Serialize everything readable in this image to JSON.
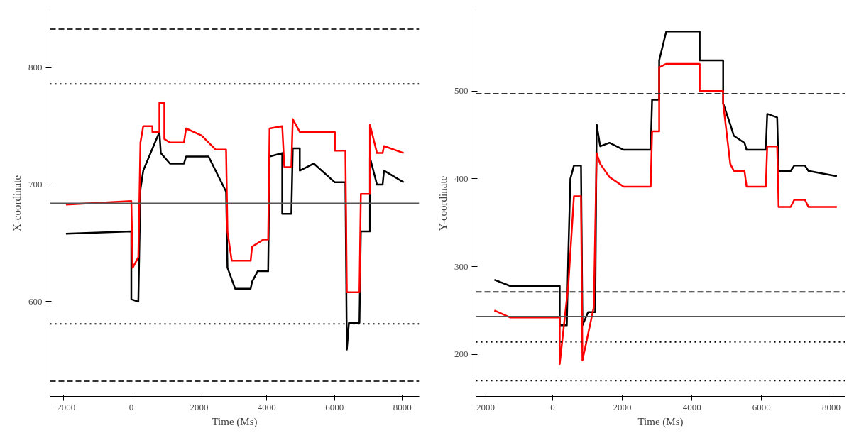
{
  "chart_data": [
    {
      "type": "line",
      "xlabel": "Time (Ms)",
      "ylabel": "X-coordinate",
      "xlim": [
        -2400,
        8500
      ],
      "ylim": [
        519,
        849
      ],
      "xticks": [
        -2000,
        0,
        2000,
        4000,
        6000,
        8000
      ],
      "yticks": [
        600,
        700,
        800
      ],
      "grid": false,
      "line_style": "solid",
      "series": [
        {
          "color": "#000000",
          "x": [
            -1930,
            0,
            0,
            207,
            269,
            352,
            829,
            870,
            1140,
            1554,
            1617,
            2280,
            2798,
            2839,
            3067,
            3523,
            3565,
            3731,
            4041,
            4083,
            4456,
            4456,
            4725,
            4767,
            4974,
            4974,
            5389,
            6010,
            6321,
            6363,
            6425,
            6736,
            6777,
            7047,
            7047,
            7254,
            7420,
            7461,
            8041
          ],
          "values": [
            658,
            660,
            602,
            600,
            696,
            712,
            745,
            727,
            718,
            718,
            724,
            724,
            694,
            629,
            611,
            611,
            617,
            626,
            626,
            724,
            727,
            675,
            675,
            731,
            731,
            712,
            718,
            702,
            702,
            559,
            582,
            582,
            660,
            660,
            723,
            700,
            700,
            712,
            702
          ]
        },
        {
          "color": "#ff0000",
          "x": [
            -1930,
            0,
            41,
            207,
            269,
            352,
            622,
            622,
            829,
            829,
            974,
            974,
            1140,
            1554,
            1617,
            2073,
            2487,
            2798,
            2839,
            2964,
            3523,
            3565,
            3896,
            4041,
            4083,
            4456,
            4518,
            4725,
            4767,
            4974,
            6010,
            6010,
            6321,
            6363,
            6736,
            6777,
            7047,
            7047,
            7254,
            7420,
            7461,
            8041
          ],
          "values": [
            683,
            686,
            629,
            638,
            736,
            750,
            750,
            745,
            745,
            770,
            770,
            739,
            736,
            736,
            748,
            742,
            730,
            730,
            660,
            635,
            635,
            647,
            653,
            653,
            748,
            750,
            715,
            715,
            756,
            745,
            745,
            729,
            729,
            608,
            608,
            692,
            692,
            751,
            727,
            727,
            733,
            727
          ]
        }
      ],
      "ref_lines": [
        {
          "axis": "y",
          "value": 833,
          "color": "#333333",
          "line_style": "dashed"
        },
        {
          "axis": "y",
          "value": 786,
          "color": "#000000",
          "line_style": "dotted"
        },
        {
          "axis": "y",
          "value": 684,
          "color": "#555555",
          "line_style": "solid"
        },
        {
          "axis": "y",
          "value": 581,
          "color": "#000000",
          "line_style": "dotted"
        },
        {
          "axis": "y",
          "value": 532,
          "color": "#333333",
          "line_style": "dashed"
        }
      ]
    },
    {
      "type": "line",
      "xlabel": "Time (Ms)",
      "ylabel": "Y-coordinate",
      "xlim": [
        -2200,
        8400
      ],
      "ylim": [
        152,
        592
      ],
      "xticks": [
        -2000,
        0,
        2000,
        4000,
        6000,
        8000
      ],
      "yticks": [
        200,
        300,
        400,
        500
      ],
      "grid": false,
      "line_style": "solid",
      "series": [
        {
          "color": "#000000",
          "x": [
            -1673,
            -1224,
            204,
            204,
            408,
            449,
            510,
            612,
            816,
            857,
            1020,
            1224,
            1265,
            1367,
            1633,
            2041,
            2816,
            2857,
            3061,
            3061,
            3265,
            4224,
            4224,
            4898,
            4898,
            5102,
            5204,
            5510,
            5571,
            6122,
            6163,
            6449,
            6490,
            6837,
            6939,
            7245,
            7347,
            8163
          ],
          "values": [
            285,
            278,
            278,
            233,
            233,
            311,
            400,
            415,
            415,
            233,
            248,
            248,
            462,
            437,
            441,
            433,
            433,
            490,
            490,
            535,
            568,
            568,
            535,
            535,
            486,
            462,
            449,
            441,
            433,
            433,
            474,
            470,
            409,
            409,
            415,
            415,
            409,
            403
          ]
        },
        {
          "color": "#ff0000",
          "x": [
            -1673,
            -1224,
            204,
            204,
            449,
            612,
            816,
            857,
            1184,
            1265,
            1367,
            1633,
            2041,
            2816,
            2857,
            3061,
            3061,
            3265,
            4224,
            4224,
            4898,
            4898,
            5102,
            5204,
            5510,
            5571,
            6122,
            6163,
            6449,
            6490,
            6837,
            6939,
            7245,
            7347,
            8163
          ],
          "values": [
            250,
            242,
            242,
            189,
            278,
            380,
            380,
            193,
            254,
            429,
            417,
            402,
            391,
            391,
            454,
            454,
            527,
            531,
            531,
            500,
            500,
            486,
            417,
            409,
            409,
            391,
            391,
            437,
            437,
            368,
            368,
            376,
            376,
            368,
            368
          ]
        }
      ],
      "ref_lines": [
        {
          "axis": "y",
          "value": 497,
          "color": "#333333",
          "line_style": "dashed"
        },
        {
          "axis": "y",
          "value": 271,
          "color": "#333333",
          "line_style": "dashed"
        },
        {
          "axis": "y",
          "value": 243,
          "color": "#555555",
          "line_style": "solid"
        },
        {
          "axis": "y",
          "value": 214,
          "color": "#000000",
          "line_style": "dotted"
        },
        {
          "axis": "y",
          "value": 170,
          "color": "#000000",
          "line_style": "dotted"
        }
      ]
    }
  ]
}
